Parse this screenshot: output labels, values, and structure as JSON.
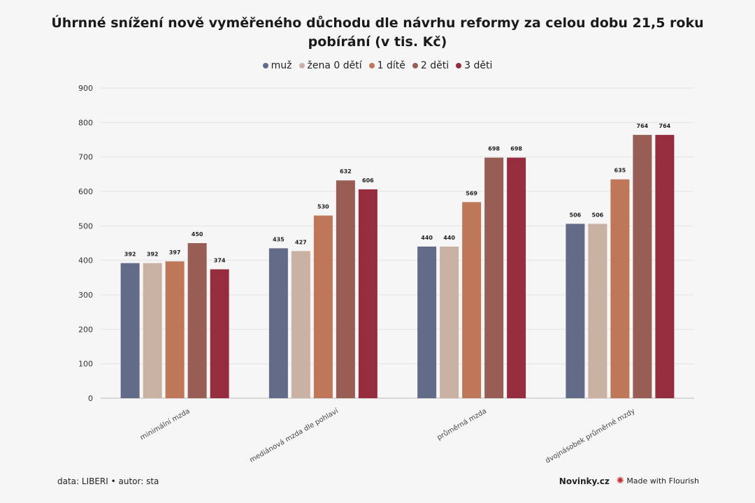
{
  "chart_data": {
    "type": "bar",
    "title": "Úhrnné snížení nově vyměřeného důchodu dle návrhu reformy za celou dobu 21,5 roku pobírání (v tis. Kč)",
    "categories": [
      "minimální mzda",
      "mediánová mzda dle pohlaví",
      "průměrná mzda",
      "dvojnásobek průměrné mzdy"
    ],
    "series": [
      {
        "name": "muž",
        "color": "#626b88",
        "values": [
          392,
          435,
          440,
          506
        ]
      },
      {
        "name": "žena 0 dětí",
        "color": "#c9b1a3",
        "values": [
          392,
          427,
          440,
          506
        ]
      },
      {
        "name": "1 dítě",
        "color": "#bf775a",
        "values": [
          397,
          530,
          569,
          635
        ]
      },
      {
        "name": "2 děti",
        "color": "#985e56",
        "values": [
          450,
          632,
          698,
          764
        ]
      },
      {
        "name": "3 děti",
        "color": "#952d3e",
        "values": [
          374,
          606,
          698,
          764
        ]
      }
    ],
    "ylim": [
      0,
      900
    ],
    "yticks": [
      0,
      100,
      200,
      300,
      400,
      500,
      600,
      700,
      800,
      900
    ],
    "grid": true,
    "legend_position": "top-center",
    "xlabel": "",
    "ylabel": ""
  },
  "footer": {
    "source": "data: LIBERI • autor: sta",
    "brand": "Novinky.cz",
    "flourish": "Made with Flourish"
  }
}
